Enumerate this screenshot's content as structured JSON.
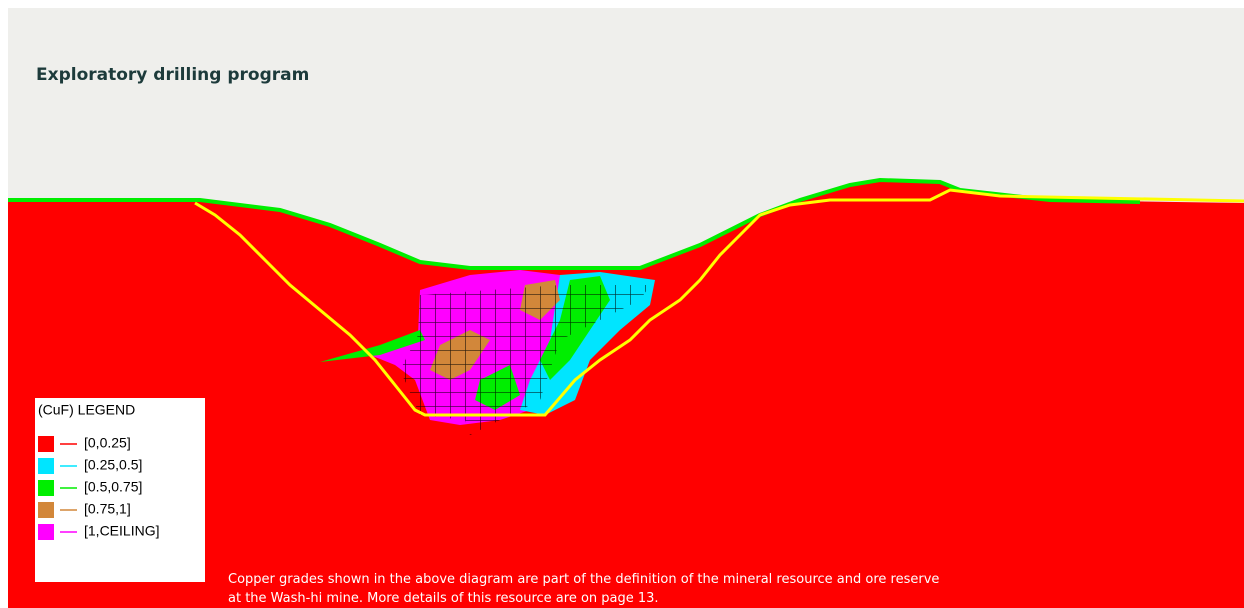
{
  "header": {
    "title": "Exploratory drilling program"
  },
  "legend": {
    "title": "(CuF) LEGEND",
    "items": [
      {
        "label": "[0,0.25]",
        "color": "#ff0000"
      },
      {
        "label": "[0.25,0.5]",
        "color": "#00e5ff"
      },
      {
        "label": "[0.5,0.75]",
        "color": "#00ee00"
      },
      {
        "label": "[0.75,1]",
        "color": "#d2873a"
      },
      {
        "label": "[1,CEILING]",
        "color": "#ff00ff"
      }
    ]
  },
  "caption": {
    "lines": [
      "Copper grades shown in the above diagram are part of the definition of the mineral resource and ore reserve",
      "at the Wash-hi mine. More details of this resource are on page 13."
    ]
  }
}
